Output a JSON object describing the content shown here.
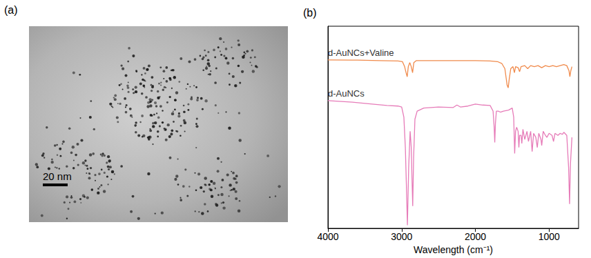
{
  "image_panel": {
    "label": "(a)",
    "scale_bar": "20 nm"
  },
  "chart_data": {
    "type": "line",
    "title": "(b)",
    "x_label": "Wavelength (cm⁻¹)",
    "xlim": [
      4000,
      600
    ],
    "xticks": [
      4000,
      3000,
      2000,
      1000
    ],
    "ylim": [
      0,
      100
    ],
    "yticks": [],
    "tick_labels": "x",
    "grid": false,
    "series": [
      {
        "name": "d-AuNCs+Valine",
        "color": "#f08a4b",
        "x": [
          4000,
          3600,
          3300,
          3050,
          2990,
          2960,
          2940,
          2925,
          2910,
          2890,
          2870,
          2852,
          2835,
          2800,
          2500,
          2200,
          2000,
          1800,
          1700,
          1640,
          1600,
          1570,
          1555,
          1540,
          1520,
          1490,
          1470,
          1455,
          1420,
          1400,
          1380,
          1330,
          1290,
          1250,
          1200,
          1150,
          1100,
          1050,
          1000,
          950,
          900,
          850,
          800,
          760,
          730,
          718,
          705,
          690
        ],
        "values": [
          83.3,
          83.2,
          83,
          82.8,
          82.5,
          80,
          77,
          75,
          80,
          82,
          80,
          77,
          82,
          83,
          83,
          83,
          83,
          82.8,
          82.5,
          81.5,
          79,
          71,
          69.5,
          74,
          79,
          80,
          77,
          80,
          79.5,
          77.5,
          80,
          80.5,
          79,
          80.5,
          80,
          80.5,
          79.5,
          80.5,
          80,
          80.5,
          80,
          80.5,
          81,
          80.5,
          78,
          75,
          78,
          80
        ]
      },
      {
        "name": "d-AuNCs",
        "color": "#e67bb8",
        "x": [
          4000,
          3700,
          3400,
          3200,
          3050,
          3000,
          2970,
          2950,
          2935,
          2922,
          2905,
          2885,
          2870,
          2860,
          2850,
          2838,
          2820,
          2790,
          2700,
          2500,
          2300,
          2250,
          2200,
          2100,
          2000,
          1900,
          1800,
          1760,
          1745,
          1737,
          1728,
          1715,
          1690,
          1660,
          1620,
          1550,
          1500,
          1480,
          1467,
          1455,
          1440,
          1420,
          1410,
          1400,
          1380,
          1370,
          1355,
          1330,
          1300,
          1280,
          1250,
          1230,
          1210,
          1180,
          1160,
          1140,
          1110,
          1100,
          1080,
          1050,
          1030,
          1000,
          960,
          940,
          920,
          880,
          850,
          820,
          800,
          760,
          735,
          722,
          710,
          690
        ],
        "values": [
          63.2,
          62.5,
          61.5,
          60.8,
          60.5,
          60,
          55,
          40,
          20,
          1.5,
          30,
          48,
          40,
          25,
          11,
          35,
          54,
          58,
          59.5,
          60,
          59.8,
          61,
          60,
          60.5,
          61.5,
          61,
          60.8,
          58,
          50,
          42.5,
          52,
          58,
          58,
          57.5,
          58,
          58.5,
          59.5,
          55,
          37,
          48,
          50,
          48,
          40,
          46,
          46,
          42,
          49,
          44,
          48,
          43,
          48,
          38,
          47,
          45,
          40,
          47,
          44,
          41,
          48,
          46,
          45,
          47,
          46,
          43,
          47,
          46,
          47,
          46.5,
          47.5,
          46,
          30,
          12,
          32,
          45
        ]
      }
    ]
  }
}
